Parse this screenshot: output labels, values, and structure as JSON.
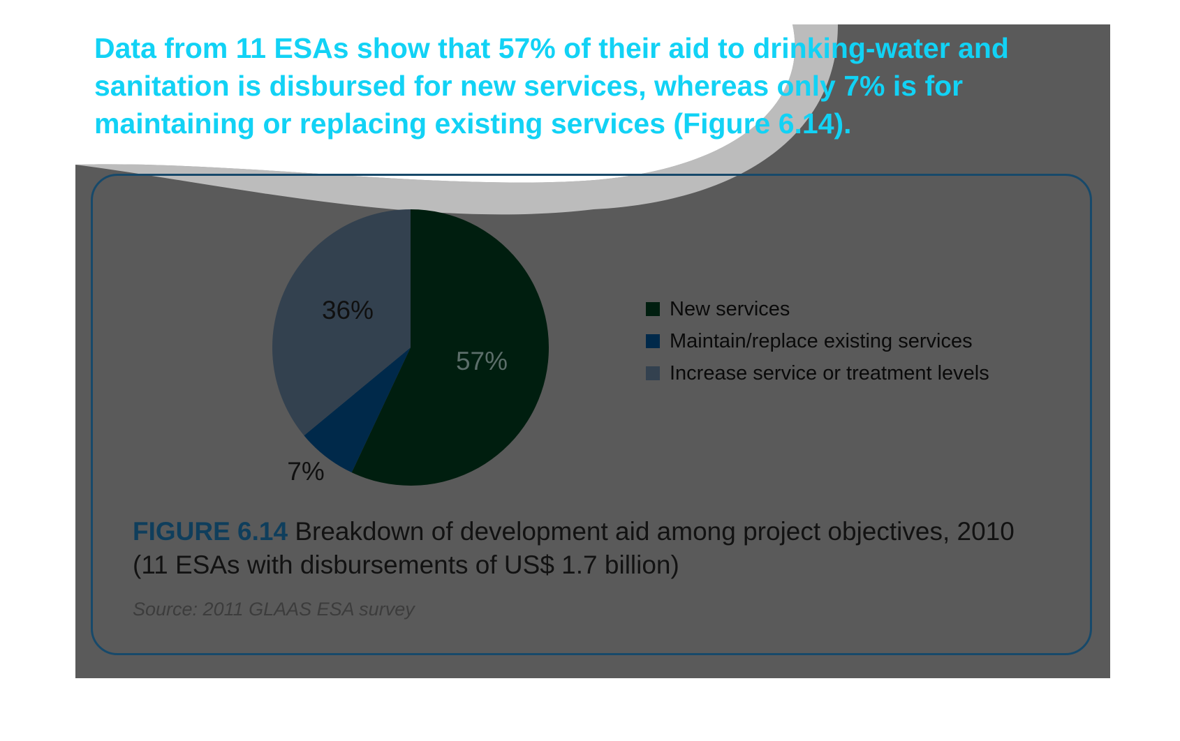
{
  "headline": "Data from 11 ESAs show that 57% of their aid to drinking-water and sanitation is disbursed for new services, whereas only 7% is for maintaining or replacing existing services (Figure 6.14).",
  "chart_data": {
    "type": "pie",
    "title": "",
    "slices": [
      {
        "name": "New services",
        "value": 57,
        "label": "57%",
        "color": "#001e0f",
        "label_color": "#5c6e6a"
      },
      {
        "name": "Maintain/replace existing services",
        "value": 7,
        "label": "7%",
        "color": "#00294a",
        "label_color": "#101010"
      },
      {
        "name": "Increase service or treatment levels",
        "value": 36,
        "label": "36%",
        "color": "#33414f",
        "label_color": "#101010"
      }
    ],
    "legend_position": "right"
  },
  "caption": {
    "label": "FIGURE 6.14",
    "text": " Breakdown of development aid among project objectives, 2010 (11 ESAs with disbursements of US$ 1.7 billion)"
  },
  "source": "Source: 2011 GLAAS ESA survey",
  "colors": {
    "panel": "#5a5a5a",
    "headline": "#12d2f5",
    "border": "#17496a",
    "caption_label": "#0f3e5c",
    "wave_light": "#bcbcbc"
  }
}
